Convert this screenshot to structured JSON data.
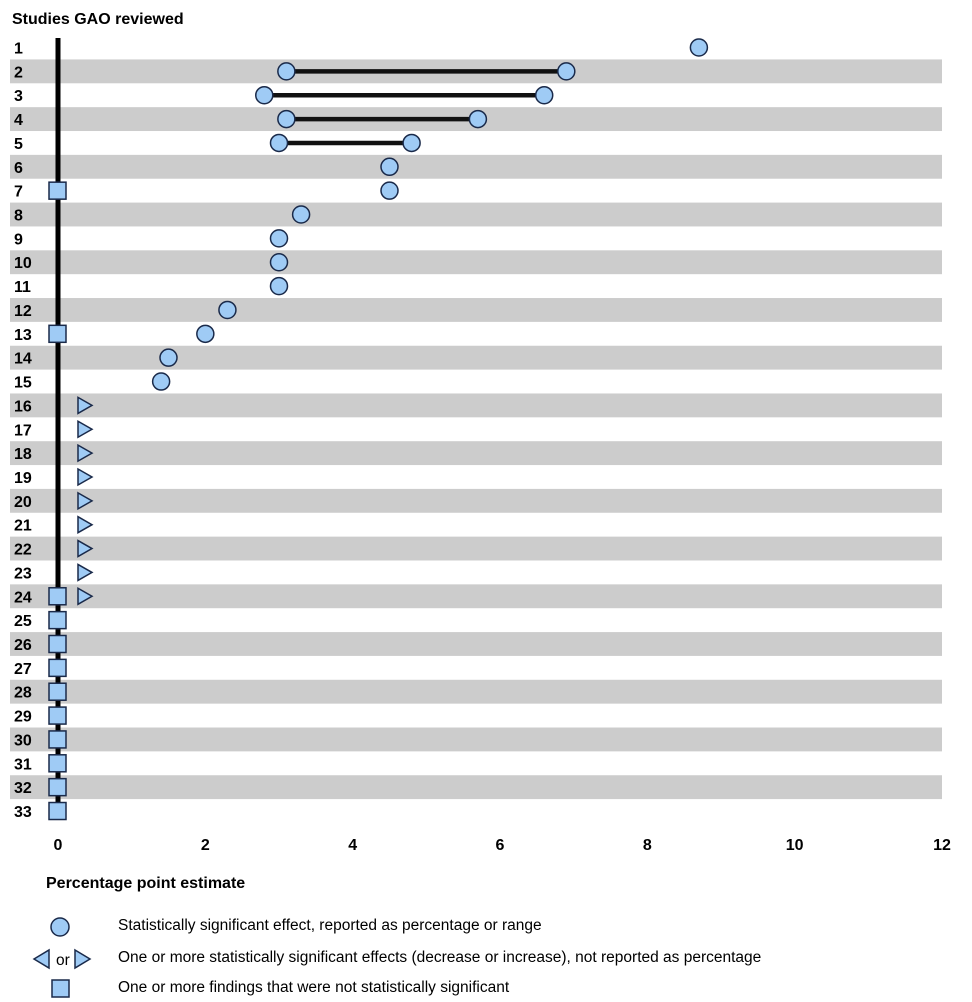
{
  "chart_data": {
    "type": "scatter",
    "title": "Studies GAO reviewed",
    "xlabel": "Percentage point estimate",
    "xlim": [
      0,
      12
    ],
    "xticks": [
      "0",
      "2",
      "4",
      "6",
      "8",
      "10",
      "12"
    ],
    "rows": [
      {
        "label": "1",
        "circles": [
          8.7
        ],
        "range": null,
        "triangle": false,
        "square": false
      },
      {
        "label": "2",
        "circles": [
          3.1,
          6.9
        ],
        "range": [
          3.1,
          6.9
        ],
        "triangle": false,
        "square": false
      },
      {
        "label": "3",
        "circles": [
          2.8,
          6.6
        ],
        "range": [
          2.8,
          6.6
        ],
        "triangle": false,
        "square": false
      },
      {
        "label": "4",
        "circles": [
          3.1,
          5.7
        ],
        "range": [
          3.1,
          5.7
        ],
        "triangle": false,
        "square": false
      },
      {
        "label": "5",
        "circles": [
          3.0,
          4.8
        ],
        "range": [
          3.0,
          4.8
        ],
        "triangle": false,
        "square": false
      },
      {
        "label": "6",
        "circles": [
          4.5
        ],
        "range": null,
        "triangle": false,
        "square": false
      },
      {
        "label": "7",
        "circles": [
          4.5
        ],
        "range": null,
        "triangle": false,
        "square": true
      },
      {
        "label": "8",
        "circles": [
          3.3
        ],
        "range": null,
        "triangle": false,
        "square": false
      },
      {
        "label": "9",
        "circles": [
          3.0
        ],
        "range": null,
        "triangle": false,
        "square": false
      },
      {
        "label": "10",
        "circles": [
          3.0
        ],
        "range": null,
        "triangle": false,
        "square": false
      },
      {
        "label": "11",
        "circles": [
          3.0
        ],
        "range": null,
        "triangle": false,
        "square": false
      },
      {
        "label": "12",
        "circles": [
          2.3
        ],
        "range": null,
        "triangle": false,
        "square": false
      },
      {
        "label": "13",
        "circles": [
          2.0
        ],
        "range": null,
        "triangle": false,
        "square": true
      },
      {
        "label": "14",
        "circles": [
          1.5
        ],
        "range": null,
        "triangle": false,
        "square": false
      },
      {
        "label": "15",
        "circles": [
          1.4
        ],
        "range": null,
        "triangle": false,
        "square": false
      },
      {
        "label": "16",
        "circles": [],
        "range": null,
        "triangle": true,
        "square": false
      },
      {
        "label": "17",
        "circles": [],
        "range": null,
        "triangle": true,
        "square": false
      },
      {
        "label": "18",
        "circles": [],
        "range": null,
        "triangle": true,
        "square": false
      },
      {
        "label": "19",
        "circles": [],
        "range": null,
        "triangle": true,
        "square": false
      },
      {
        "label": "20",
        "circles": [],
        "range": null,
        "triangle": true,
        "square": false
      },
      {
        "label": "21",
        "circles": [],
        "range": null,
        "triangle": true,
        "square": false
      },
      {
        "label": "22",
        "circles": [],
        "range": null,
        "triangle": true,
        "square": false
      },
      {
        "label": "23",
        "circles": [],
        "range": null,
        "triangle": true,
        "square": false
      },
      {
        "label": "24",
        "circles": [],
        "range": null,
        "triangle": true,
        "square": true
      },
      {
        "label": "25",
        "circles": [],
        "range": null,
        "triangle": false,
        "square": true
      },
      {
        "label": "26",
        "circles": [],
        "range": null,
        "triangle": false,
        "square": true
      },
      {
        "label": "27",
        "circles": [],
        "range": null,
        "triangle": false,
        "square": true
      },
      {
        "label": "28",
        "circles": [],
        "range": null,
        "triangle": false,
        "square": true
      },
      {
        "label": "29",
        "circles": [],
        "range": null,
        "triangle": false,
        "square": true
      },
      {
        "label": "30",
        "circles": [],
        "range": null,
        "triangle": false,
        "square": true
      },
      {
        "label": "31",
        "circles": [],
        "range": null,
        "triangle": false,
        "square": true
      },
      {
        "label": "32",
        "circles": [],
        "range": null,
        "triangle": false,
        "square": true
      },
      {
        "label": "33",
        "circles": [],
        "range": null,
        "triangle": false,
        "square": true
      }
    ],
    "legend": [
      {
        "symbol": "circle",
        "text": "Statistically significant effect, reported as percentage or range"
      },
      {
        "symbol": "triangles",
        "text": "One or more statistically significant effects (decrease or increase), not reported as percentage",
        "joiner": "or"
      },
      {
        "symbol": "square",
        "text": "One or more findings that were not statistically significant"
      }
    ],
    "colors": {
      "marker_fill": "#9fcbf5",
      "marker_stroke": "#1a2a4a",
      "stripe": "#cccccc",
      "axis": "#000000"
    }
  }
}
